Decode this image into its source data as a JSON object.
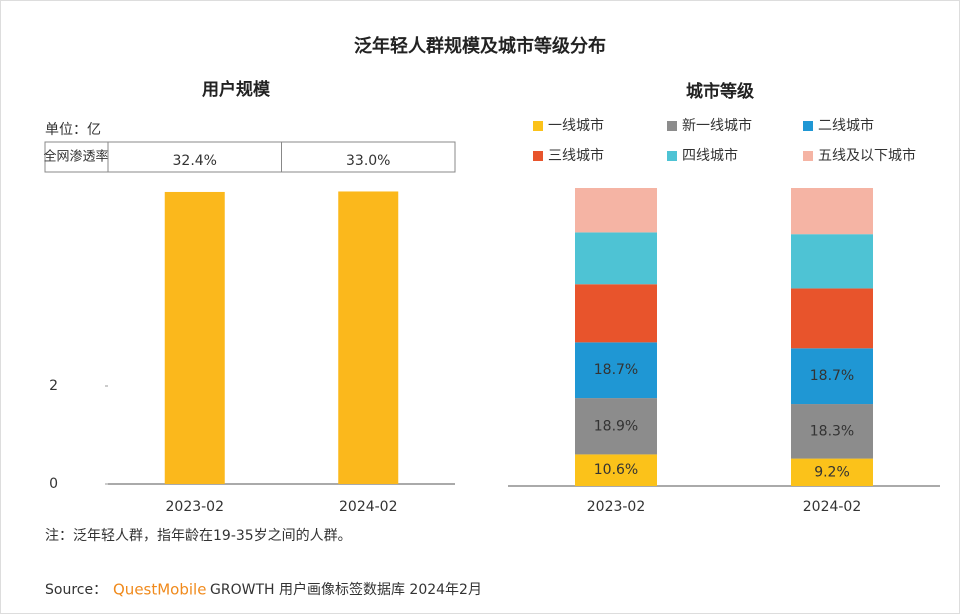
{
  "title": "泛年轻人群规模及城市等级分布",
  "chart_data": [
    {
      "type": "bar",
      "title": "用户规模",
      "unit": "单位：亿",
      "categories": [
        "2023-02",
        "2024-02"
      ],
      "values": [
        5.96,
        5.97
      ],
      "color": "#fbb81c",
      "ylim": [
        0,
        6.5
      ],
      "yticks": [
        0,
        2
      ],
      "penetration": {
        "label": "全网渗透率",
        "values": [
          32.4,
          33.0
        ],
        "value_labels": [
          "32.4%",
          "33.0%"
        ]
      }
    },
    {
      "type": "stacked_bar",
      "title": "城市等级",
      "categories": [
        "2023-02",
        "2024-02"
      ],
      "ylim": [
        0,
        100
      ],
      "series": [
        {
          "name": "一线城市",
          "color": "#fbc21a",
          "values": [
            10.6,
            9.2
          ],
          "value_labels": [
            "10.6%",
            "9.2%"
          ]
        },
        {
          "name": "新一线城市",
          "color": "#8c8c8c",
          "values": [
            18.9,
            18.3
          ],
          "value_labels": [
            "18.9%",
            "18.3%"
          ]
        },
        {
          "name": "二线城市",
          "color": "#1f97d4",
          "values": [
            18.7,
            18.7
          ],
          "value_labels": [
            "18.7%",
            "18.7%"
          ]
        },
        {
          "name": "三线城市",
          "color": "#e8542c",
          "values": [
            19.5,
            20.1
          ],
          "value_labels": [
            null,
            null
          ]
        },
        {
          "name": "四线城市",
          "color": "#4ec3d4",
          "values": [
            17.4,
            18.2
          ],
          "value_labels": [
            null,
            null
          ]
        },
        {
          "name": "五线及以下城市",
          "color": "#f5b4a4",
          "values": [
            14.9,
            15.5
          ],
          "value_labels": [
            null,
            null
          ]
        }
      ]
    }
  ],
  "note": "注：泛年轻人群，指年龄在19-35岁之间的人群。",
  "source": {
    "prefix": "Source：",
    "brand": "QuestMobile",
    "text": "GROWTH 用户画像标签数据库 2024年2月"
  }
}
